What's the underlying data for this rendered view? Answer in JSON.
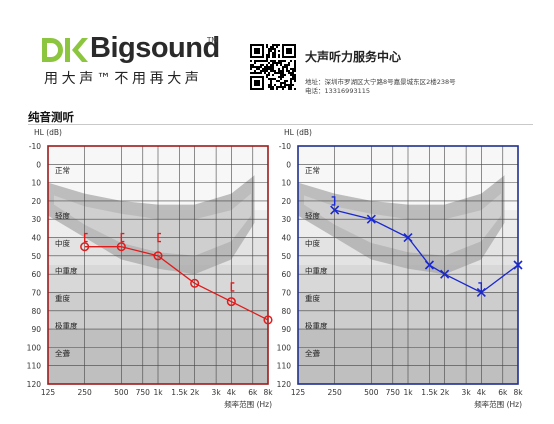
{
  "header": {
    "brand_name": "Bigsound",
    "brand_tm": "TM",
    "slogan": "用大声™不用再大声",
    "center_name": "大声听力服务中心",
    "address": "地址：深圳市罗湖区大宁路8号嘉景城东区2楼238号",
    "phone": "电话：13316993115",
    "brand_color": "#8cc63f"
  },
  "section_title": "纯音测听",
  "chart_data": [
    {
      "type": "line",
      "panel": "left",
      "ylabel": "HL (dB)",
      "xlabel": "频率范围 (Hz)",
      "ylim": [
        -10,
        120
      ],
      "y_reversed": true,
      "yticks": [
        -10,
        0,
        10,
        20,
        30,
        40,
        50,
        60,
        70,
        80,
        90,
        100,
        110,
        120
      ],
      "xticks": [
        "125",
        "250",
        "500",
        "750",
        "1k",
        "1.5k",
        "2k",
        "3k",
        "4k",
        "6k",
        "8k"
      ],
      "border_color": "#9e1b1b",
      "degree_labels": [
        {
          "label": "正常",
          "db": 3
        },
        {
          "label": "轻度",
          "db": 28
        },
        {
          "label": "中度",
          "db": 43
        },
        {
          "label": "中重度",
          "db": 58
        },
        {
          "label": "重度",
          "db": 73
        },
        {
          "label": "极重度",
          "db": 88
        },
        {
          "label": "全聋",
          "db": 103
        }
      ],
      "series": [
        {
          "color": "#e01b1b",
          "marker": "circle",
          "x": [
            "250",
            "500",
            "1k",
            "2k",
            "4k",
            "8k"
          ],
          "y": [
            45,
            45,
            50,
            65,
            75,
            85
          ]
        },
        {
          "color": "#e01b1b",
          "marker": "bracket-open",
          "x": [
            "250",
            "500",
            "1k",
            "4k"
          ],
          "y": [
            40,
            40,
            40,
            67
          ]
        }
      ]
    },
    {
      "type": "line",
      "panel": "right",
      "ylabel": "HL (dB)",
      "xlabel": "频率范围 (Hz)",
      "ylim": [
        -10,
        120
      ],
      "y_reversed": true,
      "yticks": [
        -10,
        0,
        10,
        20,
        30,
        40,
        50,
        60,
        70,
        80,
        90,
        100,
        110,
        120
      ],
      "xticks": [
        "125",
        "250",
        "500",
        "750",
        "1k",
        "1.5k",
        "2k",
        "3k",
        "4k",
        "6k",
        "8k"
      ],
      "border_color": "#1f2f8f",
      "degree_labels": [
        {
          "label": "正常",
          "db": 3
        },
        {
          "label": "轻度",
          "db": 28
        },
        {
          "label": "中度",
          "db": 43
        },
        {
          "label": "中重度",
          "db": 58
        },
        {
          "label": "重度",
          "db": 73
        },
        {
          "label": "极重度",
          "db": 88
        },
        {
          "label": "全聋",
          "db": 103
        }
      ],
      "series": [
        {
          "color": "#1a28d0",
          "marker": "cross",
          "x": [
            "250",
            "500",
            "1k",
            "1.5k",
            "2k",
            "4k",
            "8k"
          ],
          "y": [
            25,
            30,
            40,
            55,
            60,
            70,
            55
          ]
        },
        {
          "color": "#1a28d0",
          "marker": "bracket-close",
          "x": [
            "250",
            "4k"
          ],
          "y": [
            20,
            67
          ]
        }
      ]
    }
  ]
}
